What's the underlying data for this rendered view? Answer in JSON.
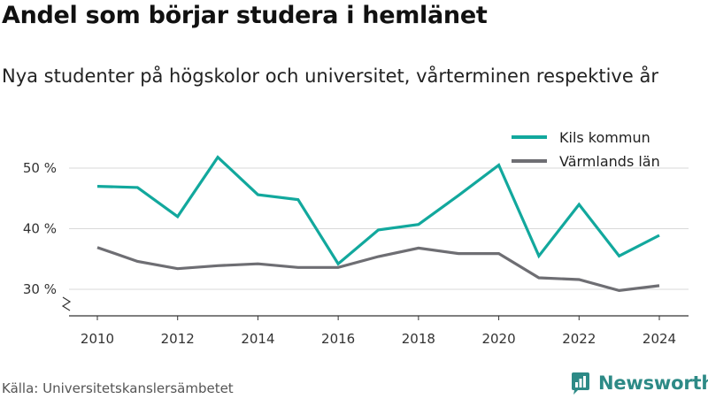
{
  "title": "Andel som börjar studera i hemlänet",
  "subtitle": "Nya studenter på högskolor och universitet, vårterminen respektive år",
  "source": "Källa: Universitetskanslersämbetet",
  "brand": {
    "name": "Newsworthy",
    "color": "#2d8a86"
  },
  "chart_data": {
    "type": "line",
    "x": [
      2010,
      2011,
      2012,
      2013,
      2014,
      2015,
      2016,
      2017,
      2018,
      2019,
      2020,
      2021,
      2022,
      2023,
      2024
    ],
    "series": [
      {
        "name": "Kils kommun",
        "color": "#12a89d",
        "values": [
          47.0,
          46.8,
          42.0,
          51.8,
          45.6,
          44.8,
          34.2,
          39.8,
          40.7,
          45.5,
          50.5,
          35.5,
          44.0,
          35.5,
          38.9
        ]
      },
      {
        "name": "Värmlands län",
        "color": "#6e6e73",
        "values": [
          36.9,
          34.6,
          33.4,
          33.9,
          34.2,
          33.6,
          33.6,
          35.4,
          36.8,
          35.9,
          35.9,
          31.9,
          31.6,
          29.8,
          30.6
        ]
      }
    ],
    "xticks": [
      2010,
      2012,
      2014,
      2016,
      2018,
      2020,
      2022,
      2024
    ],
    "xtick_labels": [
      "2010",
      "2012",
      "2014",
      "2016",
      "2018",
      "2020",
      "2022",
      "2024"
    ],
    "yticks": [
      30,
      40,
      50
    ],
    "ytick_labels": [
      "30 %",
      "40 %",
      "50 %"
    ],
    "ylim": [
      25.5,
      53
    ],
    "xlim": [
      2009.65,
      2024.35
    ],
    "grid": true,
    "legend_position": "top-right",
    "axis_break": true
  }
}
